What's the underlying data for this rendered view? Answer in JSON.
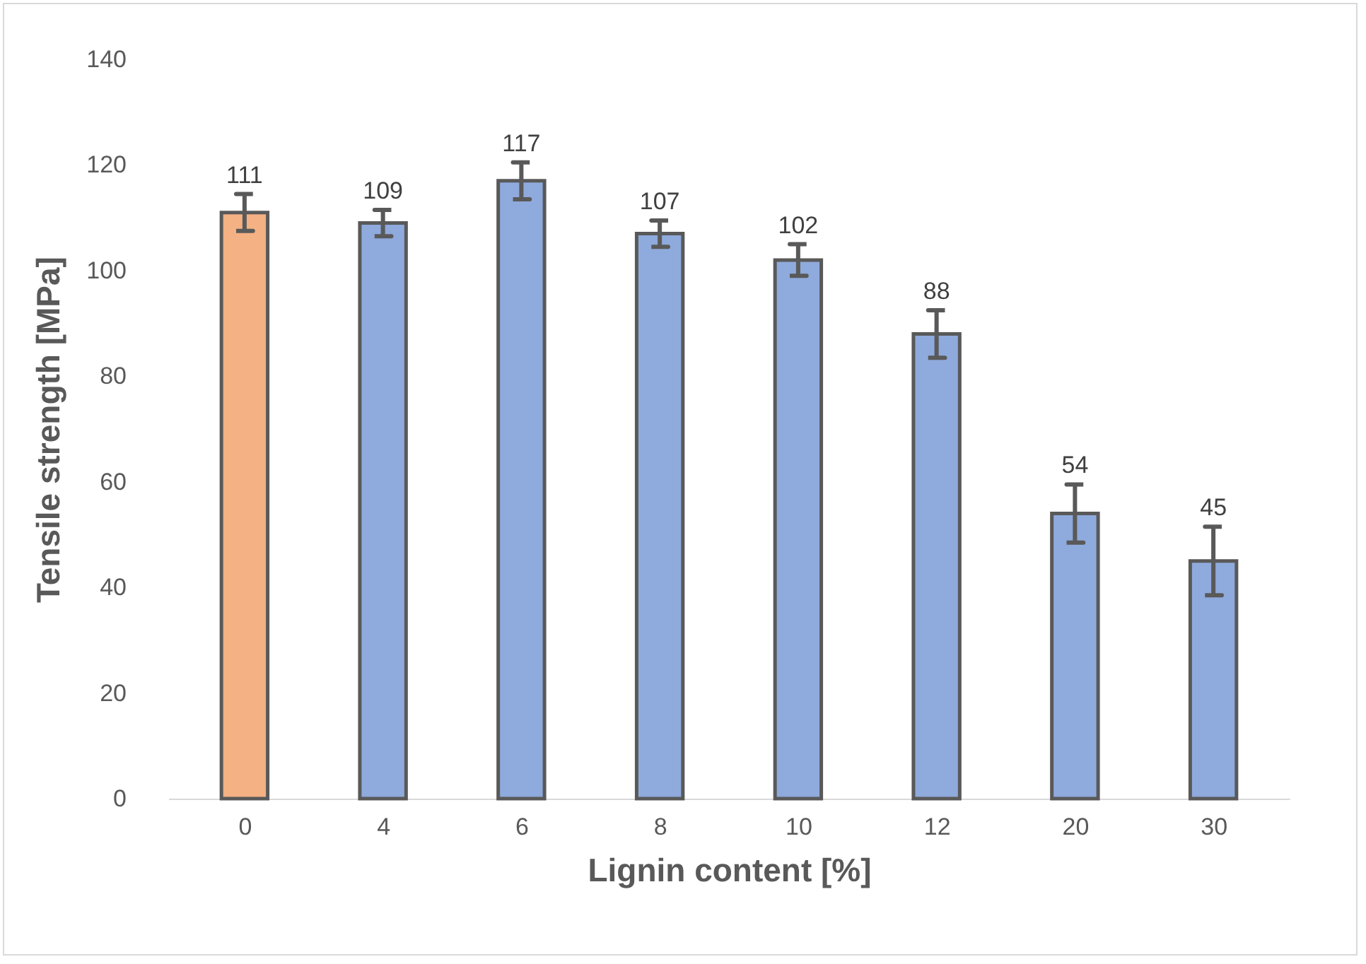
{
  "chart_data": {
    "type": "bar",
    "xlabel": "Lignin content [%]",
    "ylabel": "Tensile strength [MPa]",
    "categories": [
      "0",
      "4",
      "6",
      "8",
      "10",
      "12",
      "20",
      "30"
    ],
    "values": [
      111,
      109,
      117,
      107,
      102,
      88,
      54,
      45
    ],
    "errors": [
      3.5,
      2.5,
      3.5,
      2.5,
      3,
      4.5,
      5.5,
      6.5
    ],
    "colors": [
      "#f4b183",
      "#8faadc",
      "#8faadc",
      "#8faadc",
      "#8faadc",
      "#8faadc",
      "#8faadc",
      "#8faadc"
    ],
    "ylim": [
      0,
      140
    ],
    "yticks": [
      0,
      20,
      40,
      60,
      80,
      100,
      120,
      140
    ],
    "data_labels": true,
    "grid": false
  }
}
